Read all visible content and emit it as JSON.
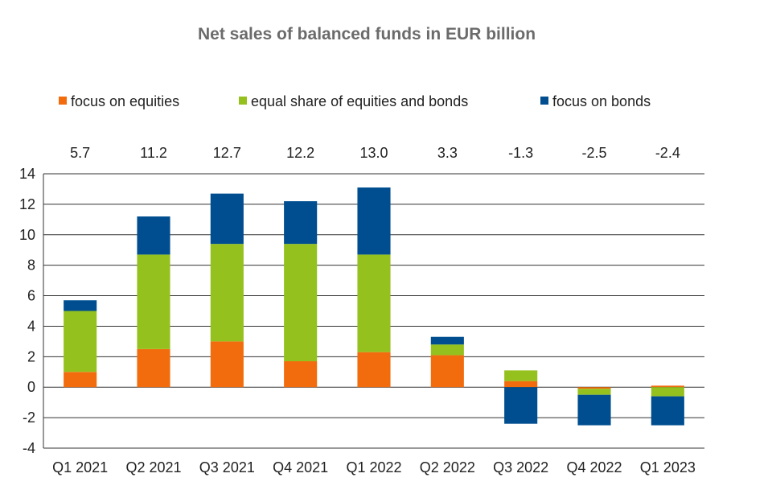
{
  "chart_data": {
    "type": "bar",
    "stacked": true,
    "title": "Net sales of balanced funds in EUR billion",
    "xlabel": "",
    "ylabel": "",
    "categories": [
      "Q1 2021",
      "Q2 2021",
      "Q3 2021",
      "Q4 2021",
      "Q1 2022",
      "Q2 2022",
      "Q3 2022",
      "Q4 2022",
      "Q1 2023"
    ],
    "totals": [
      "5.7",
      "11.2",
      "12.7",
      "12.2",
      "13.0",
      "3.3",
      "-1.3",
      "-2.5",
      "-2.4"
    ],
    "series": [
      {
        "name": "focus on equities",
        "color": "#f26c0d",
        "values": [
          1.0,
          2.5,
          3.0,
          1.7,
          2.3,
          2.1,
          0.4,
          -0.1,
          0.1
        ]
      },
      {
        "name": "equal share of equities and bonds",
        "color": "#95c11f",
        "values": [
          4.0,
          6.2,
          6.4,
          7.7,
          6.4,
          0.7,
          0.7,
          -0.4,
          -0.6
        ]
      },
      {
        "name": "focus on bonds",
        "color": "#004e8f",
        "values": [
          0.7,
          2.5,
          3.3,
          2.8,
          4.4,
          0.5,
          -2.4,
          -2.0,
          -1.9
        ]
      }
    ],
    "ylim": [
      -4,
      14
    ],
    "yticks": [
      -4,
      -2,
      0,
      2,
      4,
      6,
      8,
      10,
      12,
      14
    ],
    "grid": true,
    "legend_position": "top"
  }
}
